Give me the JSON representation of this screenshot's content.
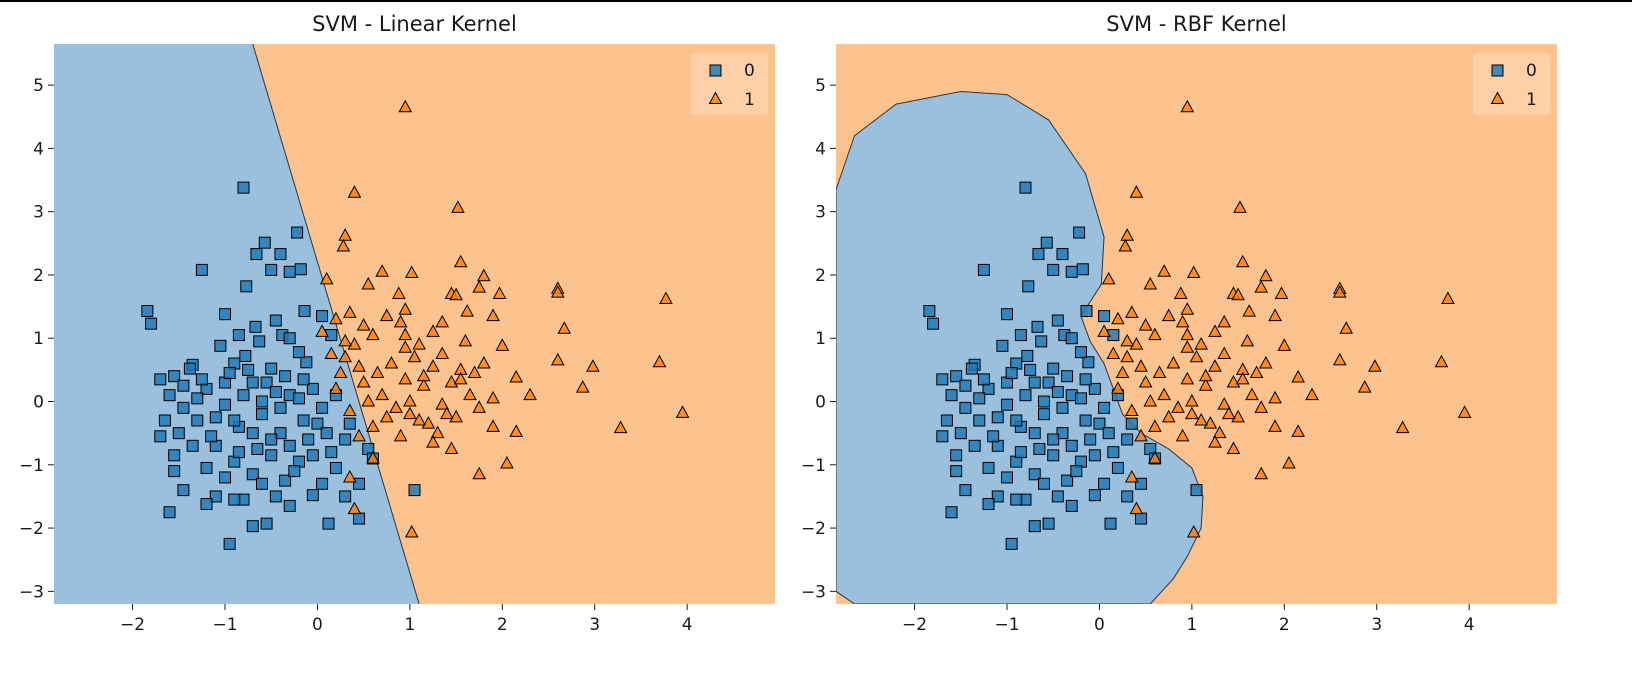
{
  "chart_data": [
    {
      "type": "scatter",
      "title": "SVM - Linear Kernel",
      "xlabel": "",
      "ylabel": "",
      "xlim": [
        -2.85,
        4.95
      ],
      "ylim": [
        -3.2,
        5.65
      ],
      "xticks": [
        "−2",
        "−1",
        "0",
        "1",
        "2",
        "3",
        "4"
      ],
      "yticks": [
        "−3",
        "−2",
        "−1",
        "0",
        "1",
        "2",
        "3",
        "4",
        "5"
      ],
      "grid": false,
      "legend_position": "top-right",
      "decision_regions": {
        "class_0_color": "#9bc0de",
        "class_1_color": "#fdc38f",
        "boundary": [
          [
            -0.7,
            5.65
          ],
          [
            1.1,
            -3.2
          ]
        ]
      },
      "series": [
        {
          "name": "0",
          "marker": "square",
          "color": "#1f77b4"
        },
        {
          "name": "1",
          "marker": "triangle",
          "color": "#ff7f0e"
        }
      ]
    },
    {
      "type": "scatter",
      "title": "SVM - RBF Kernel",
      "xlabel": "",
      "ylabel": "",
      "xlim": [
        -2.85,
        4.95
      ],
      "ylim": [
        -3.2,
        5.65
      ],
      "xticks": [
        "−2",
        "−1",
        "0",
        "1",
        "2",
        "3",
        "4"
      ],
      "yticks": [
        "−3",
        "−2",
        "−1",
        "0",
        "1",
        "2",
        "3",
        "4",
        "5"
      ],
      "grid": false,
      "legend_position": "top-right",
      "decision_regions": {
        "class_0_color": "#9bc0de",
        "class_1_color": "#fdc38f",
        "boundary": [
          [
            -2.85,
            3.35
          ],
          [
            -2.65,
            4.2
          ],
          [
            -2.2,
            4.7
          ],
          [
            -1.5,
            4.9
          ],
          [
            -1.0,
            4.85
          ],
          [
            -0.55,
            4.45
          ],
          [
            -0.15,
            3.6
          ],
          [
            0.05,
            2.6
          ],
          [
            0.02,
            1.85
          ],
          [
            -0.2,
            1.35
          ],
          [
            -0.1,
            0.95
          ],
          [
            0.05,
            0.6
          ],
          [
            0.15,
            0.2
          ],
          [
            0.25,
            -0.2
          ],
          [
            0.45,
            -0.5
          ],
          [
            0.75,
            -0.75
          ],
          [
            1.0,
            -1.05
          ],
          [
            1.12,
            -1.5
          ],
          [
            1.1,
            -2.0
          ],
          [
            0.95,
            -2.45
          ],
          [
            0.8,
            -2.8
          ],
          [
            0.55,
            -3.2
          ],
          [
            -2.65,
            -3.2
          ],
          [
            -2.85,
            -3.0
          ]
        ]
      },
      "series": [
        {
          "name": "0",
          "marker": "square",
          "color": "#1f77b4"
        },
        {
          "name": "1",
          "marker": "triangle",
          "color": "#ff7f0e"
        }
      ]
    }
  ],
  "points": {
    "class_0": [
      [
        -0.8,
        3.38
      ],
      [
        -0.22,
        2.67
      ],
      [
        -0.57,
        2.51
      ],
      [
        -0.4,
        2.33
      ],
      [
        -0.66,
        2.33
      ],
      [
        -0.5,
        2.08
      ],
      [
        -0.18,
        2.09
      ],
      [
        -1.25,
        2.08
      ],
      [
        -0.3,
        2.05
      ],
      [
        -0.77,
        1.82
      ],
      [
        -1.84,
        1.43
      ],
      [
        -0.14,
        1.43
      ],
      [
        -1.8,
        1.23
      ],
      [
        -1.0,
        1.38
      ],
      [
        -0.45,
        1.28
      ],
      [
        0.05,
        1.35
      ],
      [
        -0.67,
        1.18
      ],
      [
        -0.38,
        1.05
      ],
      [
        -0.63,
        0.95
      ],
      [
        -1.05,
        0.88
      ],
      [
        -0.78,
        0.72
      ],
      [
        -0.12,
        0.62
      ],
      [
        -1.35,
        0.58
      ],
      [
        -1.38,
        0.52
      ],
      [
        -1.55,
        0.4
      ],
      [
        -1.7,
        0.35
      ],
      [
        -0.9,
        0.6
      ],
      [
        -1.6,
        0.1
      ],
      [
        -0.5,
        0.52
      ],
      [
        -0.2,
        0.78
      ],
      [
        -1.2,
        0.2
      ],
      [
        -0.7,
        0.3
      ],
      [
        -0.05,
        0.2
      ],
      [
        0.2,
        0.1
      ],
      [
        -1.45,
        -0.1
      ],
      [
        -1.0,
        -0.05
      ],
      [
        -0.3,
        0.1
      ],
      [
        -0.15,
        -0.3
      ],
      [
        -0.6,
        -0.2
      ],
      [
        -1.3,
        -0.3
      ],
      [
        -1.7,
        -0.55
      ],
      [
        -1.5,
        -0.5
      ],
      [
        -0.85,
        -0.4
      ],
      [
        -0.4,
        -0.5
      ],
      [
        0.0,
        -0.35
      ],
      [
        0.3,
        -0.6
      ],
      [
        -1.1,
        -0.7
      ],
      [
        -1.55,
        -0.85
      ],
      [
        -0.9,
        -0.95
      ],
      [
        -0.5,
        -0.85
      ],
      [
        -0.2,
        -0.95
      ],
      [
        0.15,
        -0.8
      ],
      [
        0.55,
        -0.75
      ],
      [
        0.6,
        -0.9
      ],
      [
        -1.55,
        -1.1
      ],
      [
        -1.2,
        -1.05
      ],
      [
        -0.7,
        -1.15
      ],
      [
        -0.35,
        -1.25
      ],
      [
        0.05,
        -1.3
      ],
      [
        0.45,
        -1.3
      ],
      [
        -1.45,
        -1.4
      ],
      [
        -1.1,
        -1.5
      ],
      [
        -0.8,
        -1.55
      ],
      [
        -0.45,
        -1.5
      ],
      [
        -0.05,
        -1.48
      ],
      [
        0.3,
        -1.5
      ],
      [
        -1.6,
        -1.75
      ],
      [
        -1.2,
        -1.62
      ],
      [
        -0.9,
        -1.55
      ],
      [
        -0.3,
        -1.65
      ],
      [
        1.05,
        -1.4
      ],
      [
        0.45,
        -1.85
      ],
      [
        0.12,
        -1.93
      ],
      [
        -0.7,
        -1.97
      ],
      [
        -0.55,
        -1.93
      ],
      [
        -0.95,
        -2.25
      ],
      [
        -1.0,
        0.3
      ],
      [
        -0.8,
        0.1
      ],
      [
        -0.6,
        0.0
      ],
      [
        -0.4,
        -0.1
      ],
      [
        -0.2,
        0.05
      ],
      [
        -1.1,
        -0.25
      ],
      [
        -0.9,
        -0.3
      ],
      [
        -0.7,
        -0.5
      ],
      [
        -0.5,
        -0.6
      ],
      [
        -0.3,
        -0.7
      ],
      [
        -0.1,
        -0.6
      ],
      [
        0.1,
        -0.5
      ],
      [
        -1.3,
        0.05
      ],
      [
        -1.15,
        -0.55
      ],
      [
        -0.95,
        0.45
      ],
      [
        -0.75,
        0.5
      ],
      [
        -0.55,
        0.3
      ],
      [
        -0.35,
        0.4
      ],
      [
        -0.15,
        0.35
      ],
      [
        0.05,
        -0.1
      ],
      [
        -1.35,
        -0.7
      ],
      [
        -1.0,
        -1.2
      ],
      [
        -0.6,
        -1.3
      ],
      [
        -0.25,
        -1.1
      ],
      [
        0.2,
        -1.05
      ],
      [
        -1.25,
        0.35
      ],
      [
        -0.45,
        0.15
      ],
      [
        -0.65,
        -0.75
      ],
      [
        -0.85,
        -0.8
      ],
      [
        -0.05,
        -0.85
      ],
      [
        0.35,
        -0.35
      ],
      [
        -1.45,
        0.25
      ],
      [
        -1.65,
        -0.3
      ],
      [
        -0.3,
        1.0
      ],
      [
        -0.85,
        1.05
      ],
      [
        0.15,
        1.05
      ]
    ],
    "class_1": [
      [
        0.95,
        4.65
      ],
      [
        0.4,
        3.3
      ],
      [
        1.52,
        3.06
      ],
      [
        0.3,
        2.62
      ],
      [
        0.28,
        2.45
      ],
      [
        1.55,
        2.2
      ],
      [
        0.7,
        2.05
      ],
      [
        1.02,
        2.03
      ],
      [
        0.1,
        1.93
      ],
      [
        1.8,
        1.98
      ],
      [
        0.55,
        1.85
      ],
      [
        1.75,
        1.8
      ],
      [
        1.45,
        1.7
      ],
      [
        1.5,
        1.68
      ],
      [
        0.88,
        1.7
      ],
      [
        1.97,
        1.7
      ],
      [
        0.35,
        1.4
      ],
      [
        0.95,
        1.45
      ],
      [
        1.62,
        1.42
      ],
      [
        1.35,
        1.25
      ],
      [
        1.9,
        1.35
      ],
      [
        2.6,
        1.78
      ],
      [
        2.6,
        1.72
      ],
      [
        3.77,
        1.62
      ],
      [
        0.9,
        1.25
      ],
      [
        0.6,
        1.05
      ],
      [
        0.95,
        1.05
      ],
      [
        1.1,
        0.9
      ],
      [
        0.4,
        0.9
      ],
      [
        0.3,
        0.7
      ],
      [
        0.8,
        0.6
      ],
      [
        1.25,
        0.55
      ],
      [
        1.55,
        0.5
      ],
      [
        1.7,
        0.45
      ],
      [
        2.0,
        0.88
      ],
      [
        2.67,
        1.15
      ],
      [
        2.6,
        0.65
      ],
      [
        2.98,
        0.55
      ],
      [
        3.7,
        0.62
      ],
      [
        1.45,
        0.3
      ],
      [
        0.95,
        0.35
      ],
      [
        1.15,
        0.25
      ],
      [
        0.5,
        0.3
      ],
      [
        0.2,
        0.2
      ],
      [
        0.7,
        0.1
      ],
      [
        1.0,
        0.0
      ],
      [
        1.35,
        -0.05
      ],
      [
        1.65,
        0.1
      ],
      [
        1.9,
        0.05
      ],
      [
        2.15,
        0.38
      ],
      [
        2.3,
        0.1
      ],
      [
        2.87,
        0.22
      ],
      [
        3.95,
        -0.18
      ],
      [
        3.28,
        -0.42
      ],
      [
        1.0,
        -0.2
      ],
      [
        1.5,
        -0.25
      ],
      [
        1.2,
        -0.35
      ],
      [
        0.6,
        -0.4
      ],
      [
        0.9,
        -0.55
      ],
      [
        1.3,
        -0.5
      ],
      [
        1.9,
        -0.4
      ],
      [
        2.15,
        -0.48
      ],
      [
        0.6,
        -0.9
      ],
      [
        1.45,
        -0.75
      ],
      [
        2.05,
        -0.98
      ],
      [
        1.75,
        -1.15
      ],
      [
        1.02,
        -2.07
      ],
      [
        0.4,
        -1.7
      ],
      [
        0.35,
        -1.2
      ],
      [
        0.5,
        1.2
      ],
      [
        0.2,
        1.3
      ],
      [
        0.75,
        1.35
      ],
      [
        1.25,
        1.1
      ],
      [
        1.6,
        0.95
      ],
      [
        0.45,
        0.55
      ],
      [
        0.65,
        0.45
      ],
      [
        1.05,
        0.7
      ],
      [
        1.35,
        0.75
      ],
      [
        1.8,
        0.6
      ],
      [
        0.25,
        0.45
      ],
      [
        0.55,
        0.0
      ],
      [
        0.85,
        -0.1
      ],
      [
        1.1,
        -0.3
      ],
      [
        1.4,
        -0.2
      ],
      [
        1.75,
        -0.1
      ],
      [
        0.75,
        -0.25
      ],
      [
        1.25,
        -0.65
      ],
      [
        0.35,
        -0.15
      ],
      [
        1.55,
        0.35
      ],
      [
        0.15,
        0.75
      ],
      [
        0.95,
        0.85
      ],
      [
        0.05,
        1.1
      ],
      [
        0.3,
        0.95
      ],
      [
        1.15,
        0.4
      ],
      [
        0.45,
        -0.55
      ]
    ]
  }
}
